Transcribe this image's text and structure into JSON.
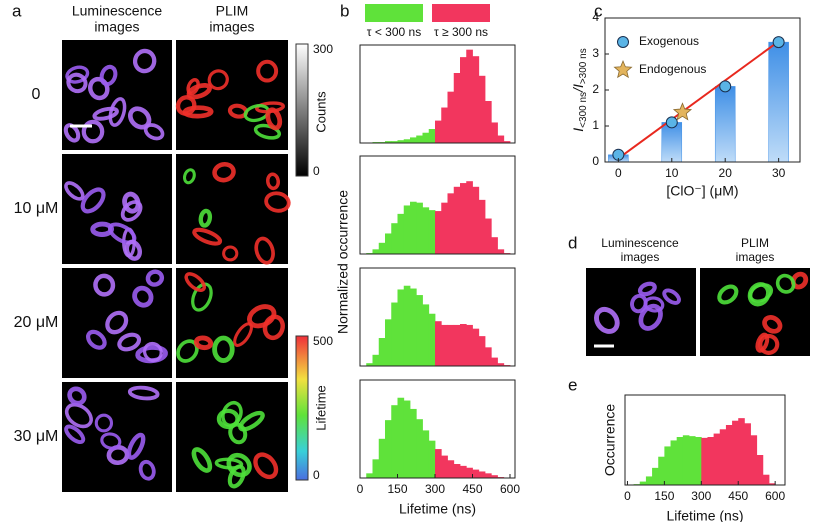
{
  "panel_a": {
    "label": "a",
    "column_headers": [
      [
        "Luminescence",
        "images"
      ],
      [
        "PLIM",
        "images"
      ]
    ],
    "row_labels": [
      "0",
      "10 μM",
      "20 μM",
      "30  μM"
    ],
    "counts_bar": {
      "title": "Counts",
      "max": "300",
      "min": "0"
    },
    "lifetime_bar": {
      "title": "Lifetime",
      "max": "500",
      "min": "0"
    }
  },
  "panel_b": {
    "label": "b",
    "legend": [
      "τ < 300 ns",
      "τ ≥ 300 ns"
    ],
    "ylabel": "Normalized occurrence"
  },
  "panel_c": {
    "label": "c"
  },
  "panel_d": {
    "label": "d",
    "column_headers": [
      [
        "Luminescence",
        "images"
      ],
      [
        "PLIM",
        "images"
      ]
    ]
  },
  "panel_e": {
    "label": "e"
  },
  "chart_data": [
    {
      "type": "histogram",
      "bins": [
        0,
        25,
        50,
        75,
        100,
        125,
        150,
        175,
        200,
        225,
        250,
        275,
        300,
        325,
        350,
        375,
        400,
        425,
        450,
        475,
        500,
        525,
        550,
        575,
        600
      ],
      "values": [
        0,
        0,
        0.01,
        0.01,
        0.02,
        0.02,
        0.03,
        0.04,
        0.06,
        0.08,
        0.11,
        0.15,
        0.24,
        0.38,
        0.55,
        0.75,
        0.92,
        1.0,
        0.93,
        0.72,
        0.45,
        0.22,
        0.08,
        0.02
      ],
      "color_split": 300,
      "colors": [
        "#5fe23a",
        "#f2365e"
      ],
      "xlim": [
        0,
        620
      ],
      "ylim": [
        0,
        1.05
      ]
    },
    {
      "type": "histogram",
      "bins": [
        0,
        25,
        50,
        75,
        100,
        125,
        150,
        175,
        200,
        225,
        250,
        275,
        300,
        325,
        350,
        375,
        400,
        425,
        450,
        475,
        500,
        525,
        550,
        575,
        600
      ],
      "values": [
        0,
        0.01,
        0.05,
        0.12,
        0.22,
        0.33,
        0.43,
        0.52,
        0.56,
        0.55,
        0.5,
        0.47,
        0.46,
        0.55,
        0.65,
        0.72,
        0.76,
        0.78,
        0.72,
        0.58,
        0.38,
        0.18,
        0.05,
        0.01
      ],
      "color_split": 300,
      "colors": [
        "#5fe23a",
        "#f2365e"
      ],
      "xlim": [
        0,
        620
      ],
      "ylim": [
        0,
        1.05
      ]
    },
    {
      "type": "histogram",
      "bins": [
        0,
        25,
        50,
        75,
        100,
        125,
        150,
        175,
        200,
        225,
        250,
        275,
        300,
        325,
        350,
        375,
        400,
        425,
        450,
        475,
        500,
        525,
        550,
        575,
        600
      ],
      "values": [
        0,
        0.03,
        0.12,
        0.3,
        0.5,
        0.68,
        0.82,
        0.86,
        0.83,
        0.76,
        0.66,
        0.56,
        0.48,
        0.44,
        0.44,
        0.44,
        0.45,
        0.44,
        0.4,
        0.32,
        0.2,
        0.09,
        0.03,
        0.01
      ],
      "color_split": 300,
      "colors": [
        "#5fe23a",
        "#f2365e"
      ],
      "xlim": [
        0,
        620
      ],
      "ylim": [
        0,
        1.05
      ]
    },
    {
      "type": "histogram",
      "bins": [
        0,
        25,
        50,
        75,
        100,
        125,
        150,
        175,
        200,
        225,
        250,
        275,
        300,
        325,
        350,
        375,
        400,
        425,
        450,
        475,
        500,
        525,
        550,
        575,
        600
      ],
      "values": [
        0,
        0.05,
        0.2,
        0.42,
        0.62,
        0.78,
        0.86,
        0.83,
        0.74,
        0.63,
        0.51,
        0.4,
        0.31,
        0.24,
        0.19,
        0.15,
        0.13,
        0.11,
        0.09,
        0.07,
        0.05,
        0.03,
        0.01,
        0
      ],
      "color_split": 300,
      "colors": [
        "#5fe23a",
        "#f2365e"
      ],
      "xlim": [
        0,
        620
      ],
      "ylim": [
        0,
        1.05
      ],
      "xticks": [
        0,
        150,
        300,
        450,
        600
      ],
      "xlabel": "Lifetime (ns)"
    },
    {
      "type": "histogram",
      "bins": [
        0,
        25,
        50,
        75,
        100,
        125,
        150,
        175,
        200,
        225,
        250,
        275,
        300,
        325,
        350,
        375,
        400,
        425,
        450,
        475,
        500,
        525,
        550,
        575,
        600
      ],
      "values": [
        0,
        0.01,
        0.04,
        0.1,
        0.2,
        0.33,
        0.45,
        0.52,
        0.56,
        0.58,
        0.57,
        0.56,
        0.55,
        0.56,
        0.6,
        0.65,
        0.7,
        0.75,
        0.78,
        0.72,
        0.58,
        0.35,
        0.12,
        0.02
      ],
      "color_split": 300,
      "colors": [
        "#5fe23a",
        "#f2365e"
      ],
      "xlim": [
        -10,
        640
      ],
      "ylim": [
        0,
        1.05
      ],
      "xticks": [
        0,
        150,
        300,
        450,
        600
      ],
      "xlabel": "Lifetime (ns)",
      "ylabel": "Occurrence"
    },
    {
      "type": "bar",
      "x": [
        0,
        10,
        20,
        30
      ],
      "values": [
        0.2,
        1.1,
        2.1,
        3.33
      ],
      "color": "#3f8fe6",
      "xlim": [
        -2.5,
        34
      ],
      "ylim": [
        0,
        4
      ],
      "xticks": [
        0,
        10,
        20,
        30
      ],
      "yticks": [
        0,
        1,
        2,
        3,
        4
      ],
      "xlabel": "[ClO⁻] (μM)",
      "ylabel": [
        "I",
        "<300 ns",
        "/I",
        ">300 ns"
      ],
      "legend": "upper left",
      "series": [
        {
          "name": "Exogenous",
          "marker": "circle",
          "color": "#5ab4e6",
          "x": [
            0,
            10,
            20,
            30
          ],
          "values": [
            0.2,
            1.1,
            2.1,
            3.33
          ]
        },
        {
          "name": "Endogenous",
          "marker": "star",
          "color": "#e3b45c",
          "x": [
            12
          ],
          "values": [
            1.38
          ]
        }
      ],
      "fit": {
        "color": "#e8281e",
        "x": [
          0,
          30
        ],
        "values": [
          0.1,
          3.35
        ]
      }
    }
  ]
}
